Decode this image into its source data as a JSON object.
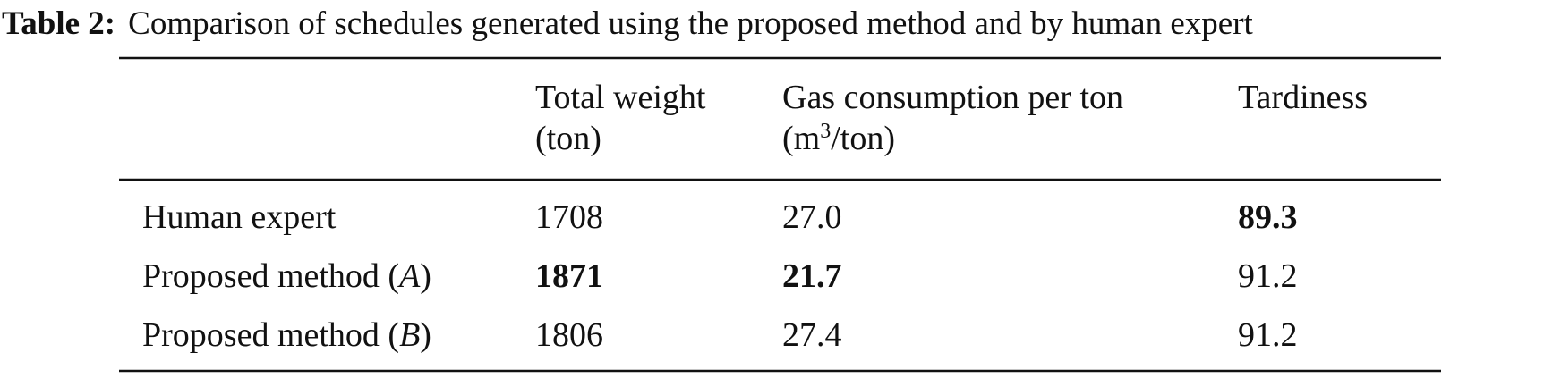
{
  "caption": {
    "label": "Table 2:",
    "text": "Comparison of schedules generated using the proposed method and by human expert"
  },
  "table": {
    "headers": [
      {
        "line1": "Total weight",
        "line2": [
          "(ton)"
        ]
      },
      {
        "line1": "Gas consumption per ton",
        "line2": [
          "(m",
          "3",
          "/ton)"
        ]
      },
      {
        "line1": "Tardiness"
      }
    ],
    "rows": [
      {
        "label": [
          "Human expert"
        ],
        "cells": [
          "1708",
          "27.0",
          "89.3"
        ],
        "bold": [
          false,
          false,
          true
        ]
      },
      {
        "label": [
          "Proposed method (",
          "A",
          ")"
        ],
        "cells": [
          "1871",
          "21.7",
          "91.2"
        ],
        "bold": [
          true,
          true,
          false
        ]
      },
      {
        "label": [
          "Proposed method (",
          "B",
          ")"
        ],
        "cells": [
          "1806",
          "27.4",
          "91.2"
        ],
        "bold": [
          false,
          false,
          false
        ]
      }
    ]
  }
}
